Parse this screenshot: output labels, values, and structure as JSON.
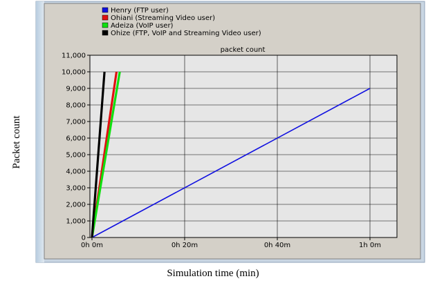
{
  "chart_data": {
    "type": "line",
    "title": "packet count",
    "xlabel": "Simulation time (min)",
    "ylabel": "Packet count",
    "xlim": [
      0,
      70
    ],
    "ylim": [
      0,
      11000
    ],
    "x_ticks": [
      {
        "value": 0,
        "label": "0h 0m"
      },
      {
        "value": 20,
        "label": "0h 20m"
      },
      {
        "value": 40,
        "label": "0h 40m"
      },
      {
        "value": 60,
        "label": "1h 0m"
      }
    ],
    "y_ticks": [
      {
        "value": 0,
        "label": "0"
      },
      {
        "value": 1000,
        "label": "1,000"
      },
      {
        "value": 2000,
        "label": "2,000"
      },
      {
        "value": 3000,
        "label": "3,000"
      },
      {
        "value": 4000,
        "label": "4,000"
      },
      {
        "value": 5000,
        "label": "5,000"
      },
      {
        "value": 6000,
        "label": "6,000"
      },
      {
        "value": 7000,
        "label": "7,000"
      },
      {
        "value": 8000,
        "label": "8,000"
      },
      {
        "value": 9000,
        "label": "9,000"
      },
      {
        "value": 10000,
        "label": "10,000"
      },
      {
        "value": 11000,
        "label": "11,000"
      }
    ],
    "grid": true,
    "legend_position": "top-left",
    "series": [
      {
        "name": "Henry (FTP user)",
        "color": "#1010e0",
        "x": [
          0,
          60
        ],
        "y": [
          0,
          9000
        ]
      },
      {
        "name": "Ohiani (Streaming Video user)",
        "color": "#e01010",
        "x": [
          0,
          5.3
        ],
        "y": [
          0,
          10000
        ]
      },
      {
        "name": "Adeiza (VoIP user)",
        "color": "#10e010",
        "x": [
          0,
          6.0
        ],
        "y": [
          0,
          10000
        ]
      },
      {
        "name": "Ohize (FTP, VoIP and Streaming Video user)",
        "color": "#000000",
        "x": [
          0,
          2.7
        ],
        "y": [
          0,
          10000
        ]
      }
    ]
  }
}
